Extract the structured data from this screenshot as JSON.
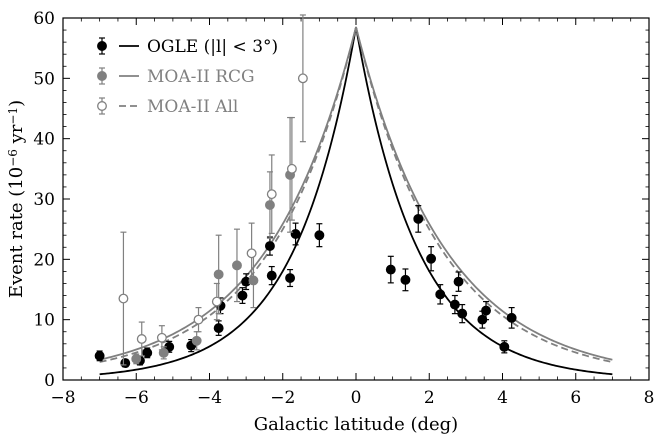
{
  "chart_data": {
    "type": "scatter",
    "xlabel": "Galactic latitude (deg)",
    "ylabel": "Event rate (10",
    "ylabel_exp": "−6",
    "ylabel_unit": " yr",
    "ylabel_unit_exp": "−1",
    "ylabel_close": ")",
    "xlim": [
      -8,
      8
    ],
    "ylim": [
      0,
      60
    ],
    "xticks": [
      -8,
      -6,
      -4,
      -2,
      0,
      2,
      4,
      6,
      8
    ],
    "yticks": [
      0,
      10,
      20,
      30,
      40,
      50,
      60
    ],
    "xtick_labels": [
      "−8",
      "−6",
      "−4",
      "−2",
      "0",
      "2",
      "4",
      "6",
      "8"
    ],
    "ytick_labels": [
      "0",
      "10",
      "20",
      "30",
      "40",
      "50",
      "60"
    ],
    "legend_position": "top-left",
    "colors": {
      "ogle": "#000000",
      "moa": "#808080"
    },
    "series": [
      {
        "name": "OGLE (|l| < 3°)",
        "kind": "points",
        "marker": "filled",
        "color": "#000000",
        "points": [
          {
            "x": -7.0,
            "y": 4.0,
            "err": 0.8
          },
          {
            "x": -6.3,
            "y": 2.8,
            "err": 0.6
          },
          {
            "x": -5.9,
            "y": 3.2,
            "err": 0.7
          },
          {
            "x": -5.7,
            "y": 4.5,
            "err": 0.8
          },
          {
            "x": -5.1,
            "y": 5.5,
            "err": 0.9
          },
          {
            "x": -4.5,
            "y": 5.7,
            "err": 1.0
          },
          {
            "x": -3.75,
            "y": 8.6,
            "err": 1.2
          },
          {
            "x": -3.7,
            "y": 12.3,
            "err": 1.3
          },
          {
            "x": -3.0,
            "y": 16.3,
            "err": 1.3
          },
          {
            "x": -3.1,
            "y": 14.0,
            "err": 1.3
          },
          {
            "x": -2.35,
            "y": 22.2,
            "err": 1.5
          },
          {
            "x": -2.3,
            "y": 17.3,
            "err": 1.5
          },
          {
            "x": -1.8,
            "y": 16.9,
            "err": 1.4
          },
          {
            "x": -1.65,
            "y": 24.2,
            "err": 1.8
          },
          {
            "x": -1.0,
            "y": 24.0,
            "err": 1.9
          },
          {
            "x": 0.95,
            "y": 18.3,
            "err": 2.2
          },
          {
            "x": 1.35,
            "y": 16.6,
            "err": 1.8
          },
          {
            "x": 1.7,
            "y": 26.7,
            "err": 2.2
          },
          {
            "x": 2.05,
            "y": 20.1,
            "err": 2.0
          },
          {
            "x": 2.3,
            "y": 14.2,
            "err": 1.6
          },
          {
            "x": 2.7,
            "y": 12.5,
            "err": 1.5
          },
          {
            "x": 2.8,
            "y": 16.3,
            "err": 1.6
          },
          {
            "x": 2.9,
            "y": 11.0,
            "err": 1.5
          },
          {
            "x": 3.45,
            "y": 10.0,
            "err": 1.4
          },
          {
            "x": 3.55,
            "y": 11.5,
            "err": 1.5
          },
          {
            "x": 4.05,
            "y": 5.5,
            "err": 1.0
          },
          {
            "x": 4.25,
            "y": 10.3,
            "err": 1.7
          }
        ]
      },
      {
        "name": "MOA-II RCG",
        "kind": "points",
        "marker": "filled",
        "color": "#808080",
        "points": [
          {
            "x": -6.0,
            "y": 3.5,
            "err": 0.8
          },
          {
            "x": -5.25,
            "y": 4.5,
            "err": 1.0
          },
          {
            "x": -4.35,
            "y": 6.5,
            "err": 1.5
          },
          {
            "x": -3.75,
            "y": 17.5,
            "err": 6.5
          },
          {
            "x": -3.25,
            "y": 19.0,
            "err": 6.0
          },
          {
            "x": -2.8,
            "y": 16.5,
            "err": 4.5
          },
          {
            "x": -2.35,
            "y": 29.0,
            "err": 5.5
          },
          {
            "x": -1.8,
            "y": 34.0,
            "err": 9.5
          }
        ]
      },
      {
        "name": "MOA-II All",
        "kind": "points",
        "marker": "open",
        "color": "#808080",
        "points": [
          {
            "x": -6.35,
            "y": 13.5,
            "err": 11.0
          },
          {
            "x": -5.85,
            "y": 6.8,
            "err": 2.8
          },
          {
            "x": -5.3,
            "y": 7.0,
            "err": 2.0
          },
          {
            "x": -4.3,
            "y": 10.0,
            "err": 2.0
          },
          {
            "x": -3.8,
            "y": 13.0,
            "err": 3.0
          },
          {
            "x": -2.85,
            "y": 21.0,
            "err": 5.0
          },
          {
            "x": -2.3,
            "y": 30.8,
            "err": 6.5
          },
          {
            "x": -1.45,
            "y": 50.0,
            "err": 10.5
          },
          {
            "x": -1.75,
            "y": 35.0,
            "err": 8.5
          }
        ]
      }
    ],
    "models": [
      {
        "name": "OGLE (|l| < 3°)",
        "style": "solid",
        "color": "#000000",
        "peak": 58.5,
        "scale": 1.7
      },
      {
        "name": "MOA-II RCG",
        "style": "solid",
        "color": "#808080",
        "peak": 58.5,
        "scale": 2.45
      },
      {
        "name": "MOA-II All",
        "style": "dashed",
        "color": "#808080",
        "peak": 58.5,
        "scale": 2.35
      }
    ],
    "legend": [
      {
        "label": "OGLE (|l| < 3°)",
        "color": "#000000",
        "marker": "filled",
        "line": "solid"
      },
      {
        "label": "MOA-II RCG",
        "color": "#808080",
        "marker": "filled",
        "line": "solid"
      },
      {
        "label": "MOA-II All",
        "color": "#808080",
        "marker": "open",
        "line": "dashed"
      }
    ]
  }
}
